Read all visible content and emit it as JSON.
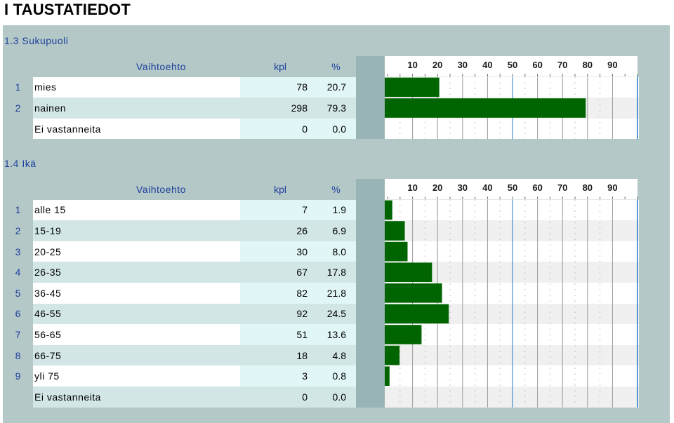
{
  "page_title": "I TAUSTATIEDOT",
  "columns": {
    "option": "Vaihtoehto",
    "count": "kpl",
    "percent": "%"
  },
  "axis_ticks": [
    10,
    20,
    30,
    40,
    50,
    60,
    70,
    80,
    90
  ],
  "colors": {
    "bar": "#006400",
    "section_bg": "#b4c8c8",
    "label_blue": "#1d3f9a",
    "blue_line": "#1e78c8"
  },
  "sections": [
    {
      "title": "1.3 Sukupuoli",
      "rows": [
        {
          "idx": "1",
          "label": "mies",
          "kpl": "78",
          "pct": "20.7"
        },
        {
          "idx": "2",
          "label": "nainen",
          "kpl": "298",
          "pct": "79.3"
        },
        {
          "idx": "",
          "label": "Ei vastanneita",
          "kpl": "0",
          "pct": "0.0"
        }
      ]
    },
    {
      "title": "1.4 Ikä",
      "rows": [
        {
          "idx": "1",
          "label": "alle 15",
          "kpl": "7",
          "pct": "1.9"
        },
        {
          "idx": "2",
          "label": "15-19",
          "kpl": "26",
          "pct": "6.9"
        },
        {
          "idx": "3",
          "label": "20-25",
          "kpl": "30",
          "pct": "8.0"
        },
        {
          "idx": "4",
          "label": "26-35",
          "kpl": "67",
          "pct": "17.8"
        },
        {
          "idx": "5",
          "label": "36-45",
          "kpl": "82",
          "pct": "21.8"
        },
        {
          "idx": "6",
          "label": "46-55",
          "kpl": "92",
          "pct": "24.5"
        },
        {
          "idx": "7",
          "label": "56-65",
          "kpl": "51",
          "pct": "13.6"
        },
        {
          "idx": "8",
          "label": "66-75",
          "kpl": "18",
          "pct": "4.8"
        },
        {
          "idx": "9",
          "label": "yli 75",
          "kpl": "3",
          "pct": "0.8"
        },
        {
          "idx": "",
          "label": "Ei vastanneita",
          "kpl": "0",
          "pct": "0.0"
        }
      ]
    }
  ],
  "chart_data": [
    {
      "type": "bar",
      "orientation": "horizontal",
      "title": "1.3 Sukupuoli",
      "categories": [
        "mies",
        "nainen",
        "Ei vastanneita"
      ],
      "values": [
        20.7,
        79.3,
        0.0
      ],
      "xlim": [
        0,
        100
      ],
      "ticks": [
        10,
        20,
        30,
        40,
        50,
        60,
        70,
        80,
        90
      ],
      "grid": true
    },
    {
      "type": "bar",
      "orientation": "horizontal",
      "title": "1.4 Ikä",
      "categories": [
        "alle 15",
        "15-19",
        "20-25",
        "26-35",
        "36-45",
        "46-55",
        "56-65",
        "66-75",
        "yli 75",
        "Ei vastanneita"
      ],
      "values": [
        1.9,
        6.9,
        8.0,
        17.8,
        21.8,
        24.5,
        13.6,
        4.8,
        0.8,
        0.0
      ],
      "xlim": [
        0,
        100
      ],
      "ticks": [
        10,
        20,
        30,
        40,
        50,
        60,
        70,
        80,
        90
      ],
      "grid": true
    }
  ]
}
